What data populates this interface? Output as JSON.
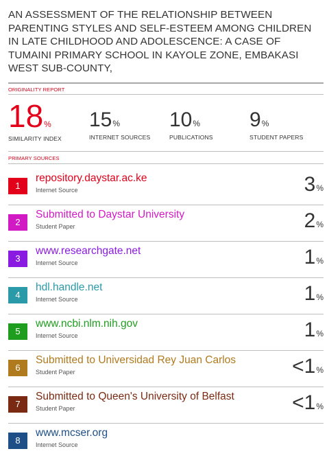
{
  "title": "AN ASSESSMENT OF THE RELATIONSHIP BETWEEN PARENTING STYLES AND SELF-ESTEEM AMONG CHILDREN IN LATE CHILDHOOD AND ADOLESCENCE: A CASE OF TUMAINI PRIMARY SCHOOL IN KAYOLE ZONE, EMBAKASI WEST SUB-COUNTY,",
  "originality_report_label": "ORIGINALITY REPORT",
  "stats": {
    "similarity": {
      "value": "18",
      "unit": "%",
      "label": "SIMILARITY INDEX"
    },
    "internet": {
      "value": "15",
      "unit": "%",
      "label": "INTERNET SOURCES"
    },
    "publications": {
      "value": "10",
      "unit": "%",
      "label": "PUBLICATIONS"
    },
    "student": {
      "value": "9",
      "unit": "%",
      "label": "STUDENT PAPERS"
    }
  },
  "primary_sources_label": "PRIMARY SOURCES",
  "sources": [
    {
      "rank": "1",
      "name": "repository.daystar.ac.ke",
      "type": "Internet Source",
      "percent": "3",
      "unit": "%",
      "color": "#e3001b"
    },
    {
      "rank": "2",
      "name": "Submitted to Daystar University",
      "type": "Student Paper",
      "percent": "2",
      "unit": "%",
      "color": "#d21ac4"
    },
    {
      "rank": "3",
      "name": "www.researchgate.net",
      "type": "Internet Source",
      "percent": "1",
      "unit": "%",
      "color": "#8a1be0"
    },
    {
      "rank": "4",
      "name": "hdl.handle.net",
      "type": "Internet Source",
      "percent": "1",
      "unit": "%",
      "color": "#2a9aa8"
    },
    {
      "rank": "5",
      "name": "www.ncbi.nlm.nih.gov",
      "type": "Internet Source",
      "percent": "1",
      "unit": "%",
      "color": "#1f9d1f"
    },
    {
      "rank": "6",
      "name": "Submitted to Universidad Rey Juan Carlos",
      "type": "Student Paper",
      "percent": "<1",
      "unit": "%",
      "color": "#b07a1e"
    },
    {
      "rank": "7",
      "name": "Submitted to Queen's University of Belfast",
      "type": "Student Paper",
      "percent": "<1",
      "unit": "%",
      "color": "#7a2a12"
    },
    {
      "rank": "8",
      "name": "www.mcser.org",
      "type": "Internet Source",
      "percent": "",
      "unit": "",
      "color": "#1e4f86"
    }
  ]
}
